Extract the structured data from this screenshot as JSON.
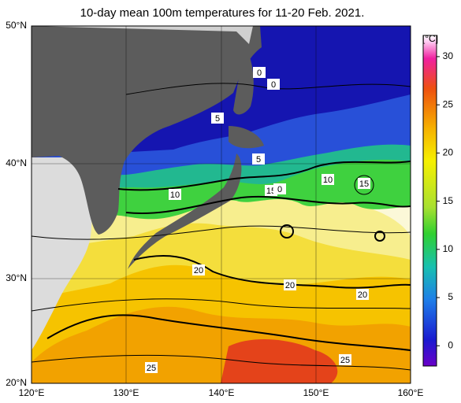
{
  "title": "10-day mean 100m temperatures for 11-20 Feb. 2021.",
  "map": {
    "lat_labels": [
      "50°N",
      "40°N",
      "30°N",
      "20°N"
    ],
    "lon_labels": [
      "120°E",
      "130°E",
      "140°E",
      "150°E",
      "160°E"
    ],
    "contour_labels": [
      0,
      0,
      5,
      5,
      10,
      15,
      0,
      10,
      15,
      20,
      20,
      20,
      25,
      25
    ]
  },
  "colorbar": {
    "unit": "[°C]",
    "range": [
      -2.1,
      32.2
    ],
    "ticks": [
      0,
      5,
      10,
      15,
      20,
      25,
      30
    ]
  }
}
